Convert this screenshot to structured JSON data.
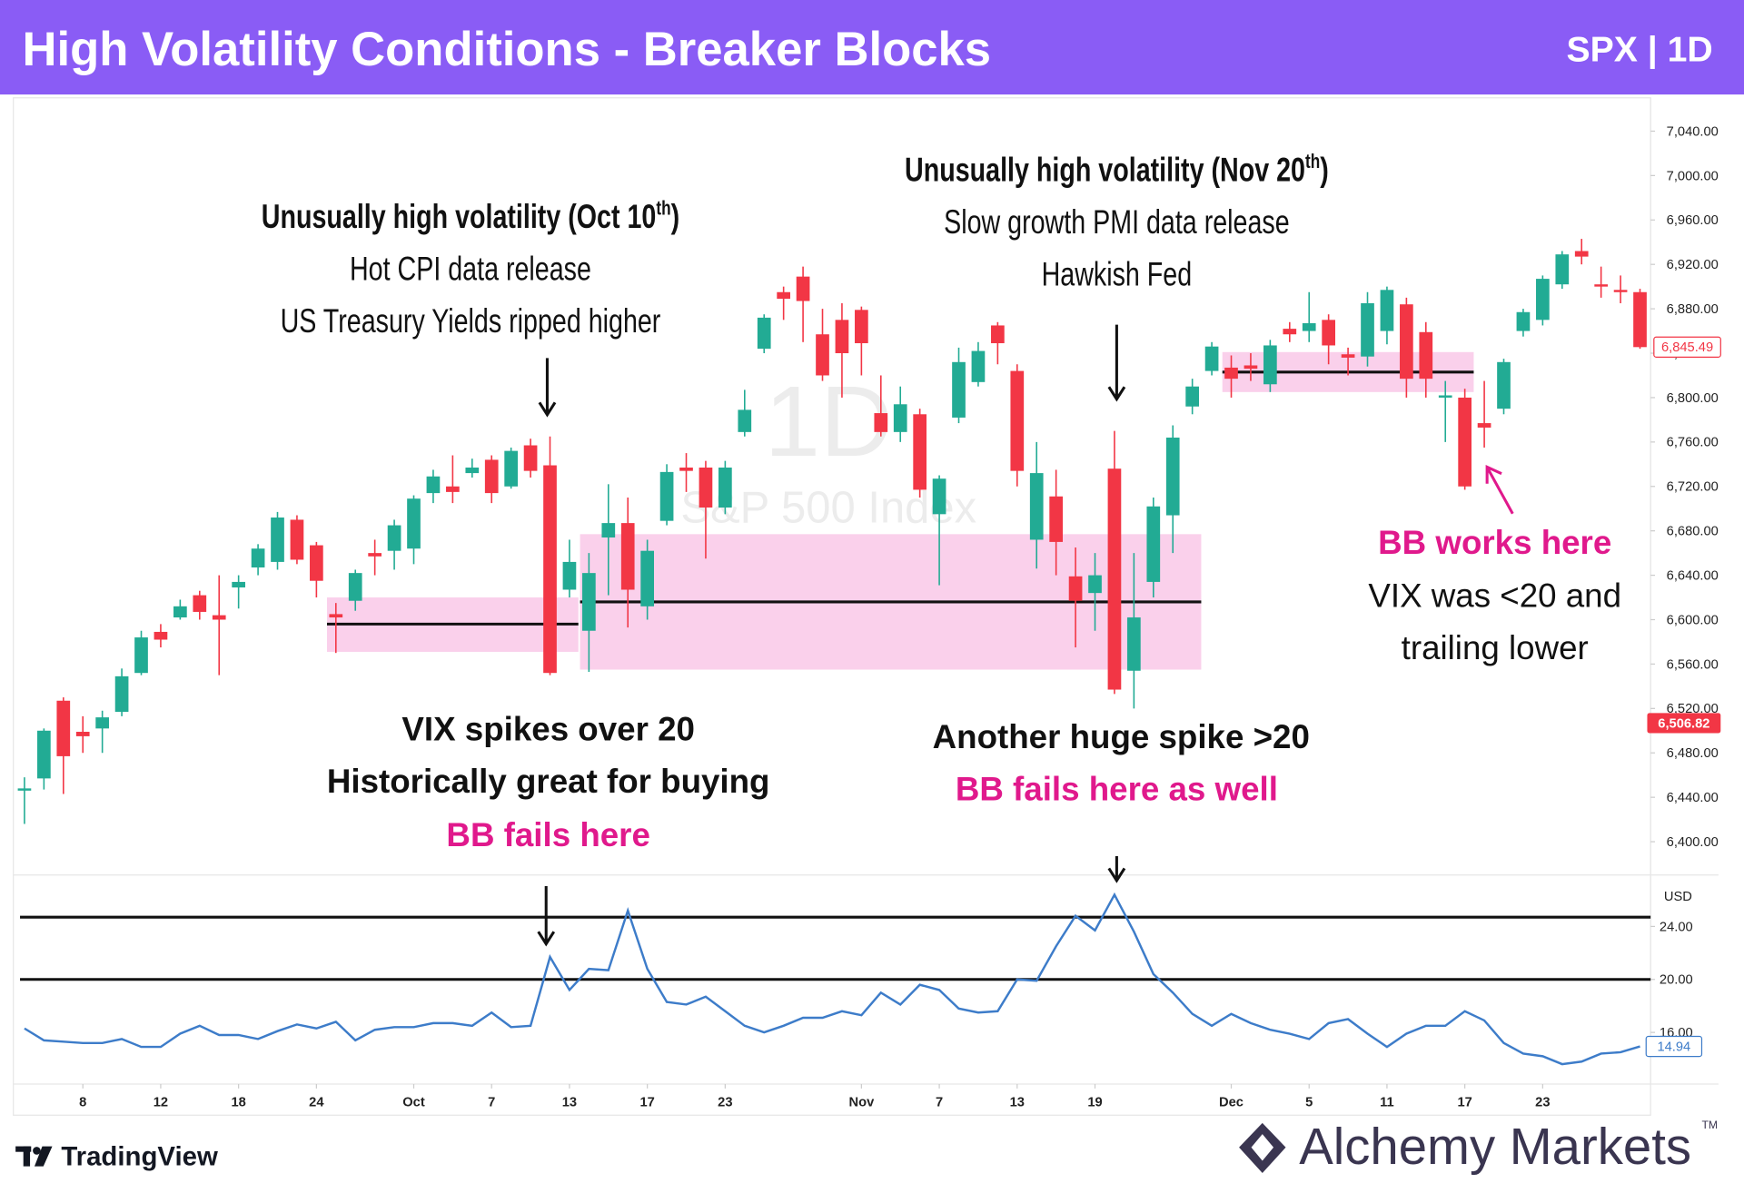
{
  "header": {
    "title": "High Volatility Conditions - Breaker Blocks",
    "badge": "SPX | 1D"
  },
  "chart_data": [
    {
      "type": "candlestick",
      "watermark": [
        "1D",
        "S&P 500 Index"
      ],
      "categories": [
        "Sep 3",
        "Sep 4",
        "Sep 5",
        "Sep 8",
        "Sep 9",
        "Sep 10",
        "Sep 11",
        "Sep 12",
        "Sep 15",
        "Sep 16",
        "Sep 17",
        "Sep 18",
        "Sep 19",
        "Sep 22",
        "Sep 23",
        "Sep 24",
        "Sep 25",
        "Sep 26",
        "Sep 29",
        "Sep 30",
        "Oct 1",
        "Oct 2",
        "Oct 3",
        "Oct 6",
        "Oct 7",
        "Oct 8",
        "Oct 9",
        "Oct 10",
        "Oct 13",
        "Oct 14",
        "Oct 15",
        "Oct 16",
        "Oct 17",
        "Oct 20",
        "Oct 21",
        "Oct 22",
        "Oct 23",
        "Oct 24",
        "Oct 27",
        "Oct 28",
        "Oct 29",
        "Oct 30",
        "Oct 31",
        "Nov 3",
        "Nov 4",
        "Nov 5",
        "Nov 6",
        "Nov 7",
        "Nov 10",
        "Nov 11",
        "Nov 12",
        "Nov 13",
        "Nov 14",
        "Nov 17",
        "Nov 18",
        "Nov 19",
        "Nov 20",
        "Nov 21",
        "Nov 24",
        "Nov 25",
        "Nov 26",
        "Nov 28",
        "Dec 1",
        "Dec 2",
        "Dec 3",
        "Dec 4",
        "Dec 5",
        "Dec 8",
        "Dec 9",
        "Dec 10",
        "Dec 11",
        "Dec 12",
        "Dec 15",
        "Dec 16",
        "Dec 17",
        "Dec 18",
        "Dec 19",
        "Dec 22",
        "Dec 23",
        "Dec 24",
        "Dec 26",
        "Dec 29",
        "Dec 30",
        "Dec 31"
      ],
      "xticks": [
        {
          "value": "Sep 8",
          "label": "8"
        },
        {
          "value": "Sep 12",
          "label": "12"
        },
        {
          "value": "Sep 18",
          "label": "18"
        },
        {
          "value": "Sep 24",
          "label": "24"
        },
        {
          "value": "Oct 1",
          "label": "Oct"
        },
        {
          "value": "Oct 7",
          "label": "7"
        },
        {
          "value": "Oct 13",
          "label": "13"
        },
        {
          "value": "Oct 17",
          "label": "17"
        },
        {
          "value": "Oct 23",
          "label": "23"
        },
        {
          "value": "Nov 3",
          "label": "Nov"
        },
        {
          "value": "Nov 7",
          "label": "7"
        },
        {
          "value": "Nov 13",
          "label": "13"
        },
        {
          "value": "Nov 19",
          "label": "19"
        },
        {
          "value": "Dec 1",
          "label": "Dec"
        },
        {
          "value": "Dec 5",
          "label": "5"
        },
        {
          "value": "Dec 11",
          "label": "11"
        },
        {
          "value": "Dec 17",
          "label": "17"
        },
        {
          "value": "Dec 23",
          "label": "23"
        }
      ],
      "open": [
        6446,
        6457,
        6527,
        6499,
        6502,
        6517,
        6552,
        6589,
        6602,
        6622,
        6604,
        6629,
        6647,
        6652,
        6690,
        6667,
        6605,
        6617,
        6660,
        6662,
        6664,
        6714,
        6720,
        6732,
        6744,
        6720,
        6757,
        6739,
        6627,
        6590,
        6674,
        6687,
        6612,
        6689,
        6737,
        6737,
        6701,
        6769,
        6844,
        6895,
        6909,
        6857,
        6870,
        6879,
        6786,
        6769,
        6785,
        6695,
        6782,
        6814,
        6865,
        6824,
        6672,
        6711,
        6639,
        6624,
        6736,
        6554,
        6634,
        6694,
        6792,
        6824,
        6827,
        6829,
        6812,
        6862,
        6860,
        6870,
        6839,
        6837,
        6860,
        6884,
        6859,
        6800,
        6800,
        6777,
        6790,
        6860,
        6870,
        6902,
        6932,
        6902,
        6897,
        6895
      ],
      "high": [
        6458,
        6502,
        6530,
        6513,
        6518,
        6556,
        6590,
        6596,
        6618,
        6626,
        6640,
        6640,
        6668,
        6697,
        6694,
        6670,
        6615,
        6645,
        6672,
        6690,
        6712,
        6735,
        6748,
        6745,
        6748,
        6755,
        6763,
        6765,
        6672,
        6660,
        6722,
        6710,
        6672,
        6740,
        6750,
        6743,
        6743,
        6807,
        6875,
        6900,
        6918,
        6880,
        6885,
        6882,
        6820,
        6810,
        6790,
        6730,
        6845,
        6850,
        6868,
        6830,
        6760,
        6735,
        6665,
        6660,
        6770,
        6660,
        6710,
        6775,
        6817,
        6850,
        6838,
        6840,
        6852,
        6868,
        6895,
        6875,
        6845,
        6895,
        6900,
        6890,
        6868,
        6815,
        6808,
        6815,
        6835,
        6880,
        6910,
        6932,
        6943,
        6918,
        6910,
        6898
      ],
      "low": [
        6416,
        6447,
        6443,
        6480,
        6480,
        6513,
        6550,
        6575,
        6600,
        6600,
        6550,
        6610,
        6640,
        6645,
        6650,
        6620,
        6570,
        6608,
        6640,
        6645,
        6650,
        6705,
        6705,
        6728,
        6705,
        6718,
        6728,
        6550,
        6620,
        6553,
        6622,
        6593,
        6600,
        6685,
        6715,
        6655,
        6695,
        6765,
        6840,
        6870,
        6850,
        6815,
        6800,
        6820,
        6765,
        6760,
        6710,
        6631,
        6777,
        6810,
        6830,
        6720,
        6646,
        6640,
        6575,
        6590,
        6533,
        6520,
        6620,
        6660,
        6785,
        6820,
        6800,
        6815,
        6805,
        6850,
        6850,
        6830,
        6820,
        6828,
        6848,
        6800,
        6800,
        6760,
        6717,
        6755,
        6785,
        6855,
        6865,
        6898,
        6920,
        6890,
        6885,
        6844
      ],
      "close": [
        6448,
        6500,
        6477,
        6495,
        6512,
        6549,
        6584,
        6582,
        6612,
        6607,
        6600,
        6634,
        6664,
        6692,
        6654,
        6635,
        6602,
        6642,
        6657,
        6685,
        6709,
        6729,
        6715,
        6737,
        6714,
        6752,
        6734,
        6552,
        6652,
        6642,
        6687,
        6627,
        6662,
        6733,
        6734,
        6701,
        6737,
        6789,
        6872,
        6889,
        6887,
        6820,
        6840,
        6849,
        6769,
        6794,
        6717,
        6727,
        6832,
        6842,
        6849,
        6734,
        6732,
        6670,
        6617,
        6640,
        6537,
        6602,
        6702,
        6764,
        6810,
        6846,
        6817,
        6826,
        6847,
        6857,
        6867,
        6847,
        6836,
        6885,
        6897,
        6817,
        6817,
        6802,
        6720,
        6773,
        6832,
        6877,
        6907,
        6929,
        6927,
        6900,
        6895,
        6845.49
      ],
      "last_close_label": "6,845.49",
      "up_color": "#22ab94",
      "down_color": "#f23645",
      "ylim": [
        6372,
        7070
      ],
      "yticks": [
        {
          "value": 6400,
          "label": "6,400.00"
        },
        {
          "value": 6440,
          "label": "6,440.00"
        },
        {
          "value": 6480,
          "label": "6,480.00"
        },
        {
          "value": 6520,
          "label": "6,520.00"
        },
        {
          "value": 6560,
          "label": "6,560.00"
        },
        {
          "value": 6600,
          "label": "6,600.00"
        },
        {
          "value": 6640,
          "label": "6,640.00"
        },
        {
          "value": 6680,
          "label": "6,680.00"
        },
        {
          "value": 6720,
          "label": "6,720.00"
        },
        {
          "value": 6760,
          "label": "6,760.00"
        },
        {
          "value": 6800,
          "label": "6,800.00"
        },
        {
          "value": 6840,
          "label": "6,840.00"
        },
        {
          "value": 6880,
          "label": "6,880.00"
        },
        {
          "value": 6920,
          "label": "6,920.00"
        },
        {
          "value": 6960,
          "label": "6,960.00"
        },
        {
          "value": 7000,
          "label": "7,000.00"
        },
        {
          "value": 7040,
          "label": "7,040.00"
        }
      ],
      "price_labels": [
        {
          "value": 6506.82,
          "label": "6,506.82"
        }
      ],
      "zones": [
        {
          "start": "Sep 25",
          "end": "Oct 13",
          "low": 6571,
          "high": 6620,
          "level": 6596
        },
        {
          "start": "Oct 14",
          "end": "Nov 26",
          "low": 6555,
          "high": 6677,
          "level": 6616
        },
        {
          "start": "Dec 1",
          "end": "Dec 17",
          "low": 6805,
          "high": 6841,
          "level": 6823
        }
      ],
      "zone_color": "#f9c8e8"
    },
    {
      "type": "line",
      "series": [
        {
          "color": "#3d7cc9",
          "values": [
            16.3,
            15.4,
            15.3,
            15.2,
            15.2,
            15.5,
            14.9,
            14.9,
            15.9,
            16.5,
            15.8,
            15.8,
            15.5,
            16.1,
            16.6,
            16.3,
            16.8,
            15.4,
            16.2,
            16.4,
            16.4,
            16.7,
            16.7,
            16.5,
            17.5,
            16.4,
            16.5,
            21.7,
            19.2,
            20.8,
            20.7,
            25.2,
            20.8,
            18.3,
            18.1,
            18.7,
            17.6,
            16.5,
            16.0,
            16.5,
            17.1,
            17.1,
            17.6,
            17.3,
            19.0,
            18.1,
            19.6,
            19.2,
            17.8,
            17.5,
            17.6,
            20.0,
            19.9,
            22.5,
            24.8,
            23.7,
            26.4,
            23.6,
            20.4,
            19.0,
            17.4,
            16.5,
            17.4,
            16.7,
            16.2,
            15.9,
            15.5,
            16.7,
            17.0,
            15.9,
            14.9,
            15.9,
            16.5,
            16.5,
            17.6,
            16.9,
            15.2,
            14.4,
            14.2,
            13.6,
            13.8,
            14.4,
            14.5,
            14.94
          ]
        }
      ],
      "last_value_label": "14.94",
      "unit_label": "USD",
      "ylim": [
        12.1,
        27.8
      ],
      "yticks": [
        {
          "value": 16,
          "label": "16.00"
        },
        {
          "value": 20,
          "label": "20.00"
        },
        {
          "value": 24,
          "label": "24.00"
        }
      ],
      "levels": [
        24.7,
        20
      ]
    }
  ],
  "annotations": [
    {
      "lines": [
        {
          "text": "Unusually high volatility (Oct 10",
          "sup": "th",
          "tail": ")"
        },
        {
          "text": "Hot CPI data release"
        },
        {
          "text": "US Treasury Yields ripped higher"
        }
      ]
    },
    {
      "lines": [
        {
          "text": "Unusually high volatility (Nov 20",
          "sup": "th",
          "tail": ")"
        },
        {
          "text": "Slow growth PMI data release"
        },
        {
          "text": "Hawkish Fed"
        }
      ]
    },
    {
      "lines": [
        {
          "text": "VIX spikes over 20"
        },
        {
          "text": "Historically great for buying"
        },
        {
          "text": "BB fails here"
        }
      ]
    },
    {
      "lines": [
        {
          "text": "Another huge spike >20"
        },
        {
          "text": "BB fails here as well"
        }
      ]
    },
    {
      "lines": [
        {
          "text": "BB works here"
        },
        {
          "text": "VIX was <20 and"
        },
        {
          "text": "trailing lower"
        }
      ]
    }
  ],
  "branding": {
    "left": "TradingView",
    "right": "Alchemy Markets",
    "mark": "TM"
  }
}
